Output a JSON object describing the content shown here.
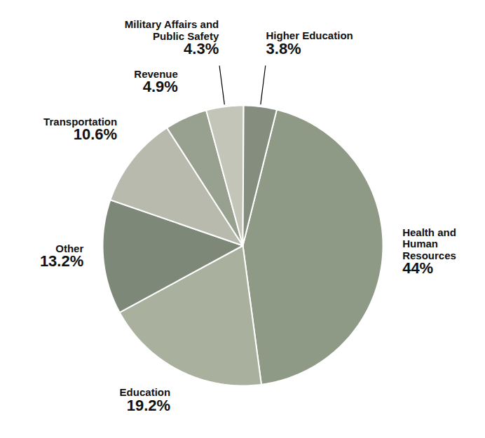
{
  "chart_data": {
    "type": "pie",
    "categories": [
      "Health and Human Resources",
      "Education",
      "Other",
      "Transportation",
      "Revenue",
      "Military Affairs and Public Safety",
      "Higher Education"
    ],
    "values": [
      44,
      19.2,
      13.2,
      10.6,
      4.9,
      4.3,
      3.8
    ],
    "value_labels": [
      "44%",
      "19.2%",
      "13.2%",
      "10.6%",
      "4.9%",
      "4.3%",
      "3.8%"
    ],
    "colors": [
      "#8e9a86",
      "#a9b09e",
      "#7d8878",
      "#b7baac",
      "#98a190",
      "#c3c5b8",
      "#848d7e"
    ],
    "data_labels": true
  }
}
